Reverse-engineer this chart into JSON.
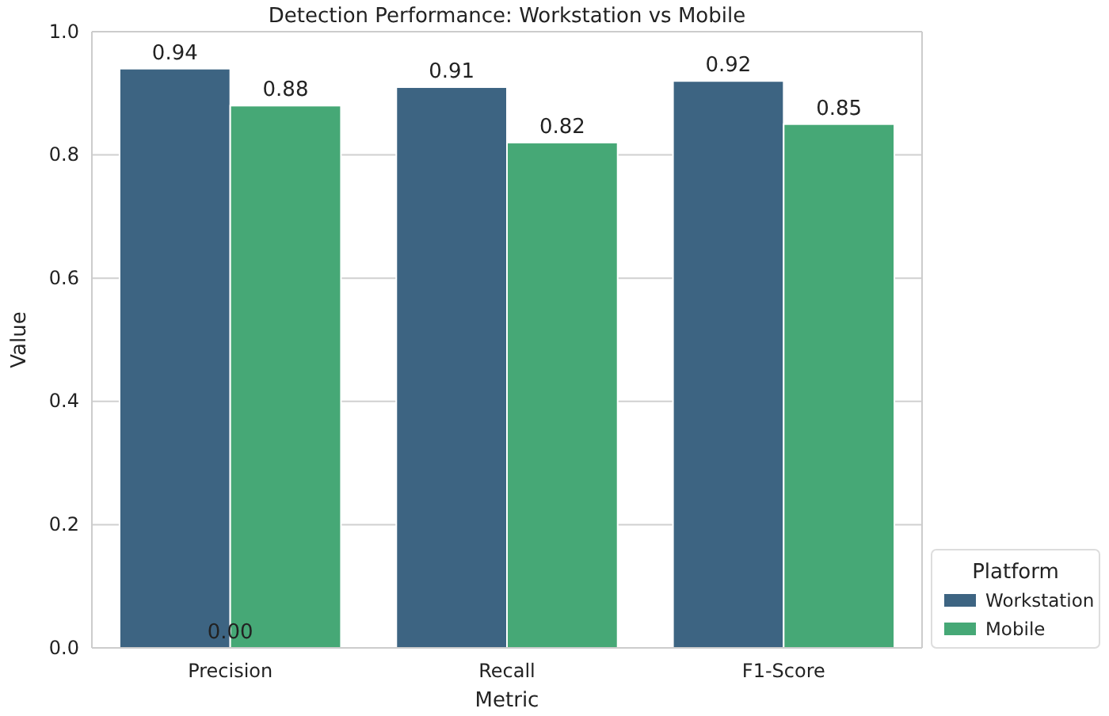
{
  "chart_data": {
    "type": "bar",
    "title": "Detection Performance: Workstation vs Mobile",
    "xlabel": "Metric",
    "ylabel": "Value",
    "legend_title": "Platform",
    "categories": [
      "Precision",
      "Recall",
      "F1-Score"
    ],
    "series": [
      {
        "name": "Workstation",
        "color": "#3d6482",
        "values": [
          0.94,
          0.91,
          0.92
        ]
      },
      {
        "name": "Mobile",
        "color": "#46a876",
        "values": [
          0.88,
          0.82,
          0.85
        ]
      }
    ],
    "ylim": [
      0,
      1
    ],
    "yticks": [
      {
        "value": 0,
        "label": "0.0"
      },
      {
        "value": 0.2,
        "label": "0.2"
      },
      {
        "value": 0.4,
        "label": "0.4"
      },
      {
        "value": 0.6,
        "label": "0.6"
      },
      {
        "value": 0.8,
        "label": "0.8"
      },
      {
        "value": 1,
        "label": "1.0"
      }
    ],
    "grid": "y",
    "legend": "bottom right",
    "data_labels": true,
    "annotations": [
      {
        "text": "0.00",
        "x": "Precision",
        "y": 0
      }
    ]
  }
}
